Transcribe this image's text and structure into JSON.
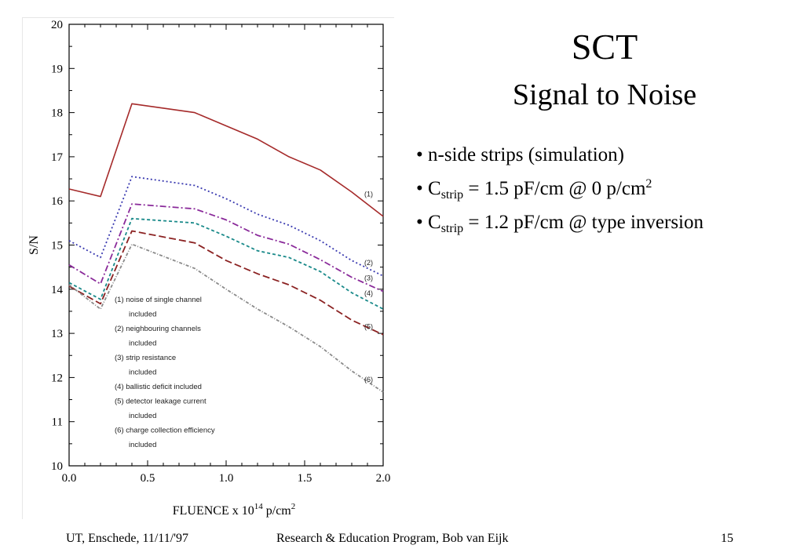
{
  "slide": {
    "title": "SCT",
    "subtitle": "Signal to Noise",
    "bullets": [
      {
        "parts": [
          {
            "t": "• n-side strips (simulation)"
          }
        ]
      },
      {
        "parts": [
          {
            "t": "• C"
          },
          {
            "t": "strip",
            "sub": true
          },
          {
            "t": " = 1.5 pF/cm @ 0 p/cm"
          },
          {
            "t": "2",
            "sup": true
          }
        ]
      },
      {
        "parts": [
          {
            "t": "• C"
          },
          {
            "t": "strip",
            "sub": true
          },
          {
            "t": " = 1.2 pF/cm @ type inversion"
          }
        ]
      }
    ]
  },
  "footer": {
    "left": "UT, Enschede, 11/11/'97",
    "center": "Research & Education Program, Bob van Eijk",
    "page": "15"
  },
  "chart_data": {
    "type": "line",
    "ylabel": "S/N",
    "xlabel_parts": {
      "main": "FLUENCE x 10",
      "sup": "14",
      "unit": " p/cm",
      "unit_sup": "2"
    },
    "xlim": [
      0.0,
      2.0
    ],
    "ylim": [
      10,
      20
    ],
    "x_ticks": [
      "0.0",
      "0.5",
      "1.0",
      "1.5",
      "2.0"
    ],
    "y_ticks": [
      "10",
      "11",
      "12",
      "13",
      "14",
      "15",
      "16",
      "17",
      "18",
      "19",
      "20"
    ],
    "grid": false,
    "series": [
      {
        "name": "(1)",
        "color": "#a52a2a",
        "dash": "",
        "width": 1.6,
        "points": [
          [
            0.0,
            16.27
          ],
          [
            0.2,
            16.1
          ],
          [
            0.4,
            18.2
          ],
          [
            0.8,
            18.0
          ],
          [
            1.0,
            17.7
          ],
          [
            1.2,
            17.4
          ],
          [
            1.4,
            17.0
          ],
          [
            1.6,
            16.7
          ],
          [
            1.8,
            16.2
          ],
          [
            2.0,
            15.65
          ]
        ]
      },
      {
        "name": "(2)",
        "color": "#3a3ab0",
        "dash": "2,3",
        "width": 1.8,
        "points": [
          [
            0.0,
            15.1
          ],
          [
            0.2,
            14.72
          ],
          [
            0.4,
            16.55
          ],
          [
            0.8,
            16.35
          ],
          [
            1.0,
            16.05
          ],
          [
            1.2,
            15.7
          ],
          [
            1.4,
            15.45
          ],
          [
            1.6,
            15.1
          ],
          [
            1.8,
            14.65
          ],
          [
            2.0,
            14.3
          ]
        ]
      },
      {
        "name": "(3)",
        "color": "#8a2a9a",
        "dash": "8,3,2,3",
        "width": 1.8,
        "points": [
          [
            0.0,
            14.55
          ],
          [
            0.2,
            14.12
          ],
          [
            0.4,
            15.93
          ],
          [
            0.8,
            15.82
          ],
          [
            1.0,
            15.57
          ],
          [
            1.2,
            15.22
          ],
          [
            1.4,
            15.02
          ],
          [
            1.6,
            14.67
          ],
          [
            1.8,
            14.27
          ],
          [
            2.0,
            13.95
          ]
        ]
      },
      {
        "name": "(4)",
        "color": "#1a8a8a",
        "dash": "4,3",
        "width": 1.8,
        "points": [
          [
            0.0,
            14.15
          ],
          [
            0.2,
            13.77
          ],
          [
            0.4,
            15.6
          ],
          [
            0.8,
            15.5
          ],
          [
            1.0,
            15.2
          ],
          [
            1.2,
            14.87
          ],
          [
            1.4,
            14.72
          ],
          [
            1.6,
            14.4
          ],
          [
            1.8,
            13.92
          ],
          [
            2.0,
            13.55
          ]
        ]
      },
      {
        "name": "(5)",
        "color": "#8b2222",
        "dash": "9,4",
        "width": 1.8,
        "points": [
          [
            0.0,
            14.07
          ],
          [
            0.2,
            13.67
          ],
          [
            0.4,
            15.32
          ],
          [
            0.8,
            15.05
          ],
          [
            1.0,
            14.65
          ],
          [
            1.2,
            14.35
          ],
          [
            1.4,
            14.1
          ],
          [
            1.6,
            13.75
          ],
          [
            1.8,
            13.3
          ],
          [
            2.0,
            12.97
          ]
        ]
      },
      {
        "name": "(6)",
        "color": "#8a8a8a",
        "dash": "4,2,1,2",
        "width": 1.8,
        "points": [
          [
            0.0,
            14.1
          ],
          [
            0.2,
            13.55
          ],
          [
            0.4,
            15.02
          ],
          [
            0.8,
            14.47
          ],
          [
            1.0,
            14.0
          ],
          [
            1.2,
            13.55
          ],
          [
            1.4,
            13.15
          ],
          [
            1.6,
            12.7
          ],
          [
            1.8,
            12.15
          ],
          [
            2.0,
            11.67
          ]
        ]
      }
    ],
    "legend_lines": [
      "(1) noise of single channel",
      "included",
      "(2) neighbouring channels",
      "included",
      "(3) strip resistance",
      "included",
      "(4) ballistic deficit included",
      "(5) detector leakage current",
      "included",
      "(6) charge collection efficiency",
      "included"
    ],
    "curve_labels": [
      {
        "text": "(1)",
        "x": 1.88,
        "y": 16.1
      },
      {
        "text": "(2)",
        "x": 1.88,
        "y": 14.55
      },
      {
        "text": "(3)",
        "x": 1.88,
        "y": 14.2
      },
      {
        "text": "(4)",
        "x": 1.88,
        "y": 13.85
      },
      {
        "text": "(5)",
        "x": 1.88,
        "y": 13.1
      },
      {
        "text": "(6)",
        "x": 1.88,
        "y": 11.9
      }
    ]
  }
}
